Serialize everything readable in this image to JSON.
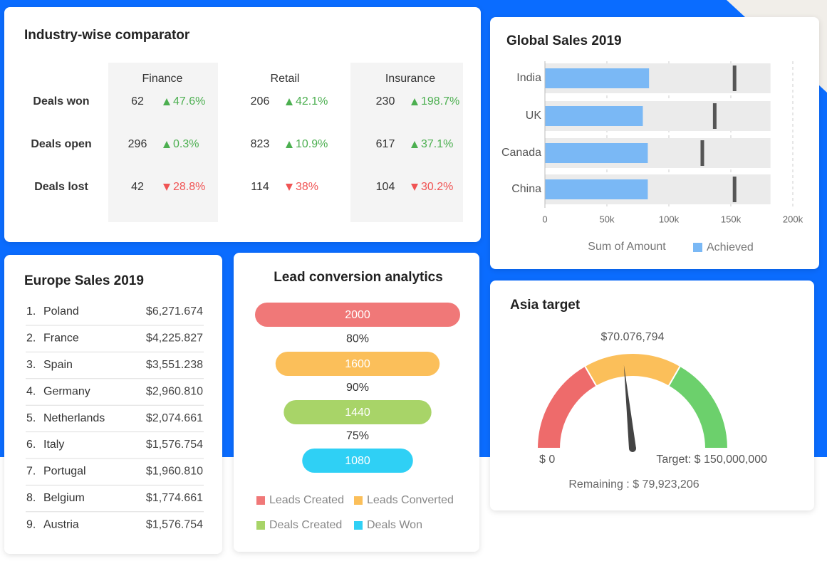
{
  "comparator": {
    "title": "Industry-wise comparator",
    "columns": [
      "Finance",
      "Retail",
      "Insurance"
    ],
    "rows": [
      {
        "label": "Deals won",
        "cells": [
          {
            "value": "62",
            "change": "47.6%",
            "direction": "up"
          },
          {
            "value": "206",
            "change": "42.1%",
            "direction": "up"
          },
          {
            "value": "230",
            "change": "198.7%",
            "direction": "up"
          }
        ]
      },
      {
        "label": "Deals open",
        "cells": [
          {
            "value": "296",
            "change": "0.3%",
            "direction": "up"
          },
          {
            "value": "823",
            "change": "10.9%",
            "direction": "up"
          },
          {
            "value": "617",
            "change": "37.1%",
            "direction": "up"
          }
        ]
      },
      {
        "label": "Deals lost",
        "cells": [
          {
            "value": "42",
            "change": "28.8%",
            "direction": "down"
          },
          {
            "value": "114",
            "change": "38%",
            "direction": "down"
          },
          {
            "value": "104",
            "change": "30.2%",
            "direction": "down"
          }
        ]
      }
    ]
  },
  "europe": {
    "title": "Europe Sales 2019",
    "rows": [
      {
        "rank": "1.",
        "country": "Poland",
        "amount": "$6,271.674"
      },
      {
        "rank": "2.",
        "country": "France",
        "amount": "$4,225.827"
      },
      {
        "rank": "3.",
        "country": "Spain",
        "amount": "$3,551.238"
      },
      {
        "rank": "4.",
        "country": "Germany",
        "amount": "$2,960.810"
      },
      {
        "rank": "5.",
        "country": "Netherlands",
        "amount": "$2,074.661"
      },
      {
        "rank": "6.",
        "country": "Italy",
        "amount": "$1,576.754"
      },
      {
        "rank": "7.",
        "country": "Portugal",
        "amount": "$1,960.810"
      },
      {
        "rank": "8.",
        "country": "Belgium",
        "amount": "$1,774.661"
      },
      {
        "rank": "9.",
        "country": "Austria",
        "amount": "$1,576.754"
      }
    ]
  },
  "chart_data": [
    {
      "type": "bullet",
      "title": "Global Sales 2019",
      "categories": [
        "India",
        "UK",
        "Canada",
        "China"
      ],
      "series": [
        {
          "name": "Achieved",
          "color": "#7ab8f5",
          "values": [
            84000,
            79000,
            83000,
            83000
          ]
        }
      ],
      "targets": [
        153000,
        137000,
        127000,
        153000
      ],
      "ranges": [
        182000,
        182000,
        182000,
        182000
      ],
      "xlim": [
        0,
        200000
      ],
      "xticks": [
        0,
        {
          "value": 50000,
          "label": "50k"
        },
        {
          "value": 100000,
          "label": "100k"
        },
        {
          "value": 150000,
          "label": "150k"
        },
        {
          "value": 200000,
          "label": "200k"
        }
      ],
      "xlabel": "Sum of Amount"
    },
    {
      "type": "funnel",
      "title": "Lead conversion analytics",
      "categories": [
        "Leads Created",
        "Leads Converted",
        "Deals Created",
        "Deals Won"
      ],
      "values": [
        2000,
        1600,
        1440,
        1080
      ],
      "colors": [
        "#f07878",
        "#fbbf5a",
        "#a8d468",
        "#2fd0f5"
      ],
      "rates": [
        80,
        90,
        75
      ],
      "rate_labels": [
        "80%",
        "90%",
        "75%"
      ]
    },
    {
      "type": "gauge",
      "title": "Asia target",
      "value": 70076794,
      "value_label": "$70.076,794",
      "ylim": [
        0,
        150000000
      ],
      "ticks": [
        {
          "value": 0,
          "label": "$ 0"
        },
        {
          "value": 150000000,
          "label": "Target: $ 150,000,000"
        }
      ],
      "bands": [
        {
          "to": 50000000,
          "color": "#ee6b6b"
        },
        {
          "to": 100000000,
          "color": "#fbbf5a"
        },
        {
          "to": 150000000,
          "color": "#6cd06c"
        }
      ],
      "remaining": {
        "value": 79923206,
        "label": "Remaining : $ 79,923,206"
      }
    }
  ]
}
